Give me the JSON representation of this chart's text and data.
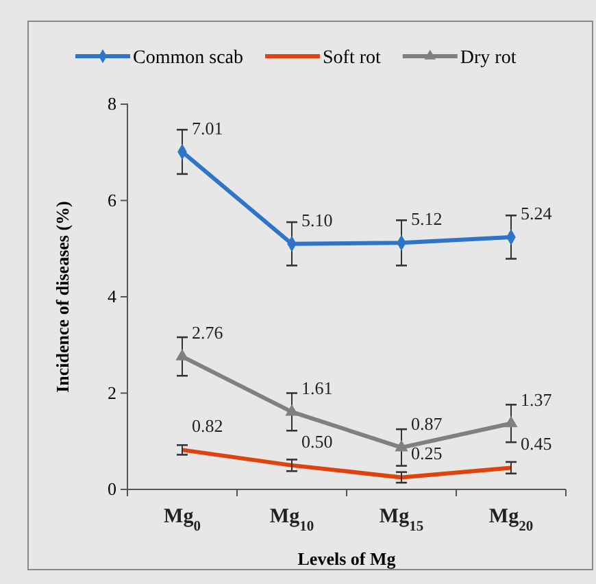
{
  "chart_data": {
    "type": "line",
    "xlabel": "Levels of  Mg",
    "ylabel": "Incidence of diseases (%)",
    "categories": [
      "Mg$_{0}$",
      "Mg$_{10}$",
      "Mg$_{15}$",
      "Mg$_{20}$"
    ],
    "ylim": [
      0,
      8
    ],
    "yticks": [
      0,
      2,
      4,
      6,
      8
    ],
    "grid": false,
    "legend": "top",
    "line_style": "solid",
    "series": [
      {
        "name": "Common scab",
        "color": "#2e75c8",
        "marker": "diamond",
        "values": [
          7.01,
          5.1,
          5.12,
          5.24
        ],
        "errors": [
          0.46,
          0.45,
          0.47,
          0.45
        ],
        "value_labels": [
          "7.01",
          "5.10",
          "5.12",
          "5.24"
        ]
      },
      {
        "name": "Soft rot",
        "color": "#e0420e",
        "marker": "none",
        "values": [
          0.82,
          0.5,
          0.25,
          0.45
        ],
        "errors": [
          0.1,
          0.12,
          0.11,
          0.12
        ],
        "value_labels": [
          "0.82",
          "0.50",
          "0.25",
          "0.45"
        ]
      },
      {
        "name": "Dry rot",
        "color": "#808080",
        "marker": "triangle",
        "values": [
          2.76,
          1.61,
          0.87,
          1.37
        ],
        "errors": [
          0.4,
          0.39,
          0.38,
          0.39
        ],
        "value_labels": [
          "2.76",
          "1.61",
          "0.87",
          "1.37"
        ]
      }
    ]
  }
}
